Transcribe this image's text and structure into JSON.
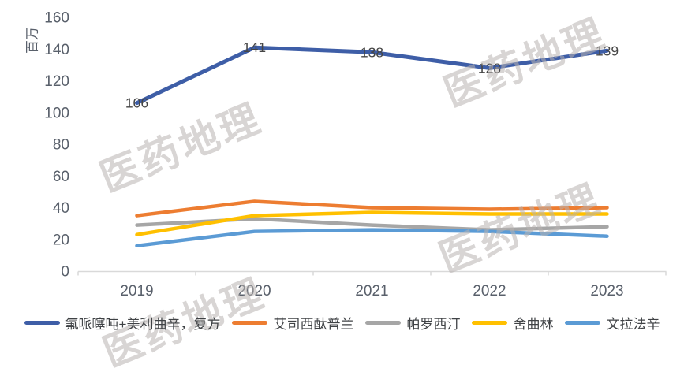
{
  "watermark": {
    "text": "医药地理"
  },
  "chart_data": {
    "type": "line",
    "title": "",
    "xlabel": "",
    "ylabel": "百万",
    "categories": [
      "2019",
      "2020",
      "2021",
      "2022",
      "2023"
    ],
    "ylim": [
      0,
      160
    ],
    "ytick_step": 20,
    "grid": false,
    "legend_position": "bottom",
    "axis_color": "#D9D9D9",
    "tick_label_color": "#59606B",
    "data_label_color": "#454545",
    "series": [
      {
        "name": "氟哌噻吨+美利曲辛，复方",
        "color": "#3E5EA7",
        "values": [
          106,
          141,
          138,
          128,
          139
        ],
        "show_labels": true
      },
      {
        "name": "艾司西酞普兰",
        "color": "#ED7D31",
        "values": [
          35,
          44,
          40,
          39,
          40
        ],
        "show_labels": false
      },
      {
        "name": "帕罗西汀",
        "color": "#A6A6A6",
        "values": [
          29,
          33,
          29,
          26,
          28
        ],
        "show_labels": false
      },
      {
        "name": "舍曲林",
        "color": "#FFC000",
        "values": [
          23,
          35,
          37,
          36,
          36
        ],
        "show_labels": false
      },
      {
        "name": "文拉法辛",
        "color": "#5B9BD5",
        "values": [
          16,
          25,
          26,
          25,
          22
        ],
        "show_labels": false
      }
    ]
  }
}
